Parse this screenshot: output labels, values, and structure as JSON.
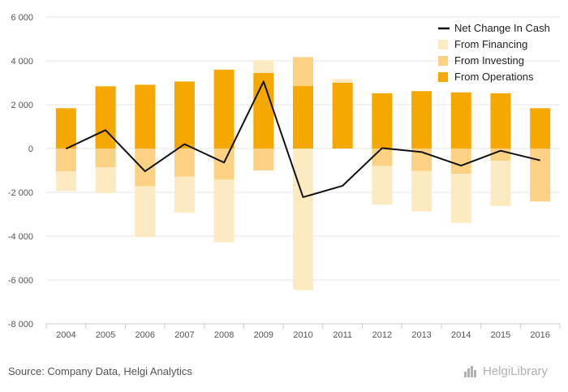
{
  "chart_data": {
    "type": "bar",
    "categories": [
      "2004",
      "2005",
      "2006",
      "2007",
      "2008",
      "2009",
      "2010",
      "2011",
      "2012",
      "2013",
      "2014",
      "2015",
      "2016"
    ],
    "series": [
      {
        "name": "From Operations",
        "kind": "bar",
        "color": "#F5A800",
        "values": [
          1840,
          2840,
          2910,
          3060,
          3600,
          3450,
          2850,
          3000,
          2520,
          2620,
          2560,
          2520,
          1840
        ]
      },
      {
        "name": "From Investing",
        "kind": "bar",
        "color": "#FBD283",
        "values": [
          -1040,
          -860,
          -1720,
          -1280,
          -1420,
          -1000,
          1320,
          0,
          -800,
          -1030,
          -1150,
          -560,
          -2420
        ]
      },
      {
        "name": "From Financing",
        "kind": "bar",
        "color": "#FEEAC0",
        "values": [
          -900,
          -1180,
          -2320,
          -1640,
          -2860,
          580,
          -6460,
          170,
          -1760,
          -1840,
          -2240,
          -2060,
          0
        ]
      },
      {
        "name": "Net Change In Cash",
        "kind": "line",
        "color": "#111111",
        "values": [
          -10,
          840,
          -1040,
          200,
          -640,
          3060,
          -2220,
          -1700,
          20,
          -160,
          -780,
          -100,
          -540
        ]
      }
    ],
    "y_ticks": [
      6000,
      4000,
      2000,
      0,
      -2000,
      -4000,
      -6000,
      -8000
    ],
    "ylim": [
      -8000,
      6000
    ],
    "legend_position": "top-right",
    "grid": true
  },
  "labels": {
    "y_ticks": [
      "6 000",
      "4 000",
      "2 000",
      "0",
      "-2 000",
      "-4 000",
      "-6 000",
      "-8 000"
    ],
    "legend": [
      "Net Change In Cash",
      "From Financing",
      "From Investing",
      "From Operations"
    ]
  },
  "footer": {
    "source": "Source: Company Data, Helgi Analytics",
    "brand": "HelgiLibrary"
  }
}
